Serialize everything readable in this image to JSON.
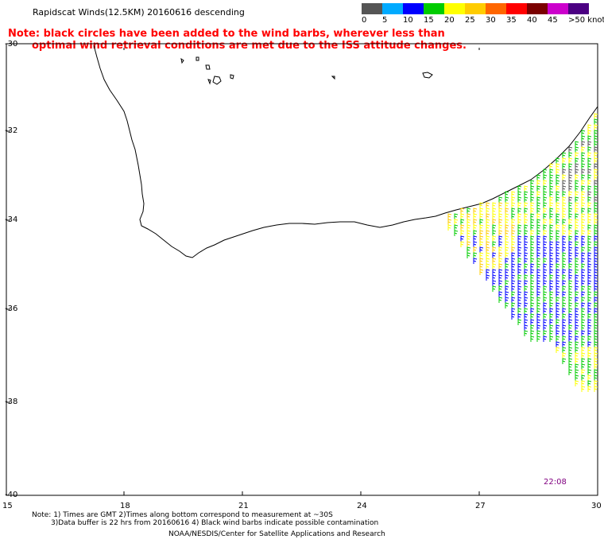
{
  "header": {
    "title": "Rapidscat Winds(12.5KM) 20160616 descending",
    "note_line1": "Note: black circles have been added to the wind barbs, wherever less than",
    "note_line2": "optimal wind retrieval conditions are met due to the ISS attitude changes."
  },
  "legend": {
    "colors": [
      "#555555",
      "#00aaff",
      "#0000ff",
      "#00cc00",
      "#ffff00",
      "#ffcc00",
      "#ff6600",
      "#ff0000",
      "#7a0000",
      "#cc00cc",
      "#4b0082"
    ],
    "labels": [
      "0",
      "5",
      "10",
      "15",
      "20",
      "25",
      "30",
      "35",
      "40",
      "45",
      ">50 knots"
    ]
  },
  "axes": {
    "lat_labels": [
      "-30",
      "-32",
      "-34",
      "-36",
      "-38",
      "-40"
    ],
    "lon_labels": [
      "15",
      "18",
      "21",
      "24",
      "27",
      "30"
    ]
  },
  "time_stamp": "22:08",
  "footer": {
    "line1": "Note: 1) Times are GMT 2)Times along bottom correspond to measurement at ~30S",
    "line2": "3)Data buffer is 22 hrs from 20160616 4) Black wind barbs indicate possible contamination",
    "line3": "NOAA/NESDIS/Center for Satellite Applications and Research"
  }
}
